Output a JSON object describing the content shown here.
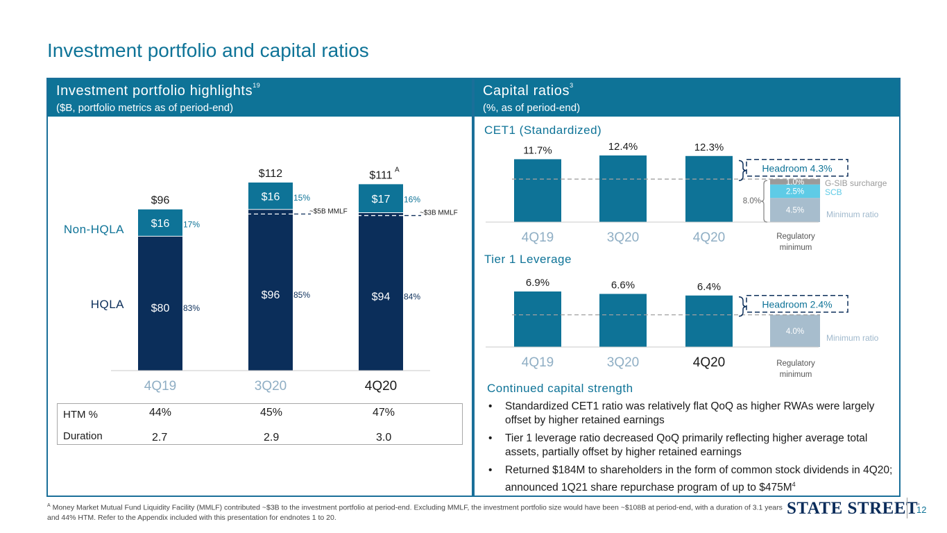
{
  "page": {
    "title": "Investment portfolio and capital ratios",
    "page_number": "12",
    "logo_text": "State Street"
  },
  "left_panel": {
    "title": "Investment portfolio highlights",
    "title_note": "19",
    "subtitle": "($B, portfolio metrics as of period-end)"
  },
  "right_panel": {
    "title": "Capital ratios",
    "title_note": "3",
    "subtitle": "(%, as of period-end)",
    "cet1_title": "CET1 (Standardized)",
    "leverage_title": "Tier 1 Leverage"
  },
  "chart_data": [
    {
      "id": "investment-portfolio",
      "type": "bar",
      "stacked": true,
      "categories": [
        "4Q19",
        "3Q20",
        "4Q20"
      ],
      "series": [
        {
          "name": "HQLA",
          "values": [
            80,
            96,
            94
          ],
          "labels": [
            "$80",
            "$96",
            "$94"
          ],
          "pct_labels": [
            "83%",
            "85%",
            "84%"
          ]
        },
        {
          "name": "Non-HQLA",
          "values": [
            16,
            16,
            17
          ],
          "labels": [
            "$16",
            "$16",
            "$17"
          ],
          "pct_labels": [
            "17%",
            "15%",
            "16%"
          ]
        }
      ],
      "totals": [
        "$96",
        "$112",
        "$111"
      ],
      "total_notes": [
        "",
        "",
        "A"
      ],
      "mmlf_values": [
        null,
        5,
        3
      ],
      "mmlf_labels": [
        "",
        "~$5B MMLF",
        "~$3B MMLF"
      ],
      "series_labels": [
        "Non-HQLA",
        "HQLA"
      ],
      "ylim": [
        0,
        112
      ],
      "colors": {
        "hqla": "#0b2e5a",
        "non_hqla": "#0e7397"
      }
    },
    {
      "id": "cet1",
      "type": "bar",
      "categories": [
        "4Q19",
        "3Q20",
        "4Q20"
      ],
      "values": [
        11.7,
        12.4,
        12.3
      ],
      "labels": [
        "11.7%",
        "12.4%",
        "12.3%"
      ],
      "regulatory_minimum": {
        "label": "Regulatory minimum",
        "total": 8.0,
        "total_label": "8.0%",
        "components": [
          {
            "name": "Minimum ratio",
            "value": 4.5,
            "label": "4.5%",
            "color": "#a7bdcd"
          },
          {
            "name": "SCB",
            "value": 2.5,
            "label": "2.5%",
            "color": "#5ecbe6"
          },
          {
            "name": "G-SIB surcharge",
            "value": 1.0,
            "label": "1.0%",
            "color": "#9a9a9a"
          }
        ]
      },
      "headroom_label": "Headroom 4.3%",
      "ylim": [
        0,
        12.4
      ]
    },
    {
      "id": "tier1-leverage",
      "type": "bar",
      "categories": [
        "4Q19",
        "3Q20",
        "4Q20"
      ],
      "values": [
        6.9,
        6.6,
        6.4
      ],
      "labels": [
        "6.9%",
        "6.6%",
        "6.4%"
      ],
      "regulatory_minimum": {
        "label": "Regulatory minimum",
        "total": 4.0,
        "components": [
          {
            "name": "Minimum ratio",
            "value": 4.0,
            "label": "4.0%",
            "color": "#a7bdcd"
          }
        ]
      },
      "headroom_label": "Headroom 2.4%",
      "ylim": [
        0,
        6.9
      ]
    }
  ],
  "metrics_table": {
    "rows": [
      {
        "label": "HTM %",
        "values": [
          "44%",
          "45%",
          "47%"
        ]
      },
      {
        "label": "Duration",
        "values": [
          "2.7",
          "2.9",
          "3.0"
        ]
      }
    ]
  },
  "strength": {
    "title": "Continued capital strength",
    "bullets": [
      "Standardized CET1 ratio was relatively flat QoQ as higher RWAs were largely offset by higher retained earnings",
      "Tier 1 leverage ratio decreased QoQ primarily reflecting higher average total assets, partially offset by higher retained earnings",
      "Returned $184M to shareholders in the form of common stock dividends in 4Q20; announced 1Q21 share repurchase program of up to $475M"
    ],
    "last_note": "4"
  },
  "footnote": {
    "marker": "A",
    "text": "Money Market Mutual Fund Liquidity Facility (MMLF) contributed ~$3B to the investment portfolio at period-end. Excluding MMLF, the investment portfolio size would have been ~$108B at period-end, with a duration of 3.1 years and 44% HTM. Refer to the Appendix included with this presentation for endnotes 1 to 20."
  },
  "colors": {
    "brand_teal": "#0e7397",
    "navy": "#0b2e5a",
    "light_blue": "#5ecbe6",
    "gray_blue": "#a7bdcd",
    "muted_label": "#8faec4"
  }
}
